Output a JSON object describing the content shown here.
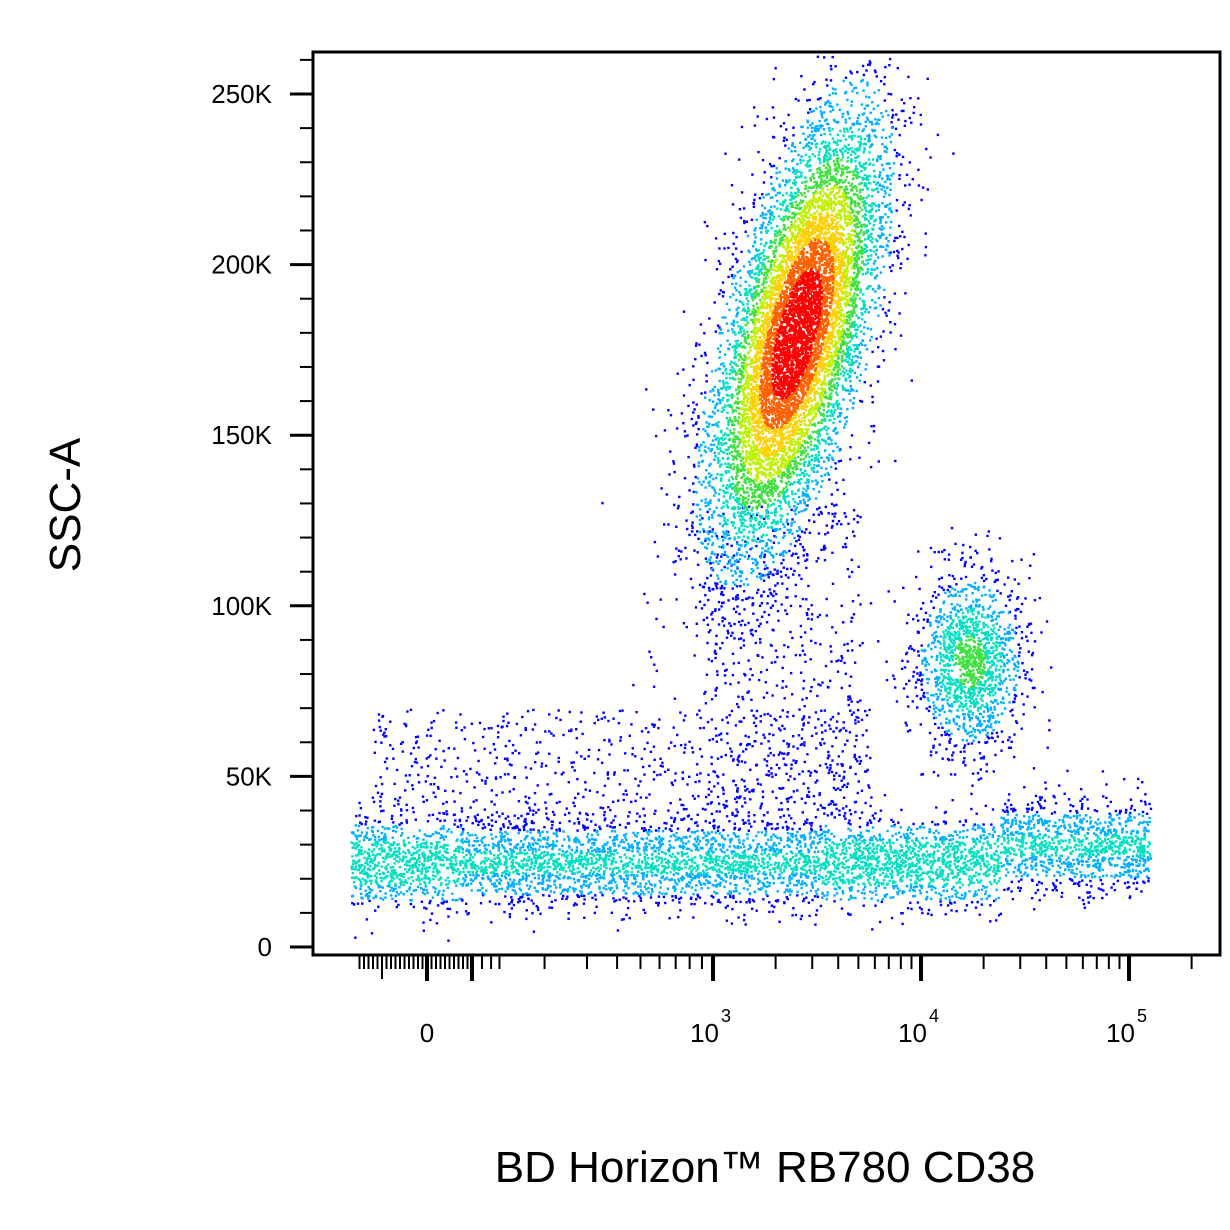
{
  "chart_data": {
    "type": "scatter",
    "subtype": "flow-cytometry-density-pseudocolor",
    "title": "",
    "xlabel": "BD Horizon™ RB780 CD38",
    "ylabel": "SSC-A",
    "x_scale": "biexponential",
    "xlim": [
      -150,
      160000
    ],
    "ylim": [
      -5000,
      262144
    ],
    "x_ticks": [
      {
        "value": 0,
        "label": "0"
      },
      {
        "value": 1000,
        "label": "10",
        "exp": "3"
      },
      {
        "value": 10000,
        "label": "10",
        "exp": "4"
      },
      {
        "value": 100000,
        "label": "10",
        "exp": "5"
      }
    ],
    "y_ticks": [
      {
        "value": 0,
        "label": "0"
      },
      {
        "value": 50000,
        "label": "50K"
      },
      {
        "value": 100000,
        "label": "100K"
      },
      {
        "value": 150000,
        "label": "150K"
      },
      {
        "value": 200000,
        "label": "200K"
      },
      {
        "value": 250000,
        "label": "250K"
      }
    ],
    "grid": false,
    "legend": "none",
    "colormap": [
      "#0000ff",
      "#00b0ff",
      "#00e0c0",
      "#40e040",
      "#c0f000",
      "#ffd000",
      "#ff6000",
      "#ff0000"
    ],
    "populations": [
      {
        "id": "granulocytes",
        "x_center": 2500,
        "y_center": 180000,
        "x_spread_decades": 0.18,
        "y_spread": 38000,
        "y_range": [
          100000,
          262144
        ],
        "peak_density": "high"
      },
      {
        "id": "monocytes",
        "x_center": 18000,
        "y_center": 85000,
        "x_spread_decades": 0.14,
        "y_spread": 14000,
        "peak_density": "medium"
      },
      {
        "id": "lymphocytes",
        "x_range": [
          -150,
          40000
        ],
        "y_center": 25000,
        "y_spread": 7000,
        "peak_density": "low-medium"
      }
    ]
  }
}
